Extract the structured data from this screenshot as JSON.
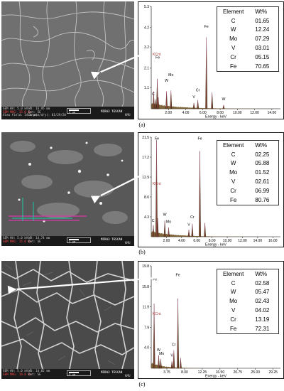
{
  "panels": [
    {
      "caption": "(a)",
      "sem": {
        "col1": [
          "SEM HV: 5.0 kV",
          "SEM MAG: 15.0 kx",
          "View field: 14.4 µm"
        ],
        "col2": [
          "WD: 16.95 mm",
          "Det: SE",
          "Date(m/d/y): 01/29/20"
        ],
        "scale": "2 µm",
        "brand": "MIRA3 TESCAN",
        "badge": "KMU"
      },
      "table": {
        "headers": [
          "Element",
          "Wt%"
        ],
        "rows": [
          [
            "C",
            "01.65"
          ],
          [
            "W",
            "12.24"
          ],
          [
            "Mo",
            "07.29"
          ],
          [
            "V",
            "03.01"
          ],
          [
            "Cr",
            "05.15"
          ],
          [
            "Fe",
            "70.65"
          ]
        ]
      },
      "chart_data": {
        "type": "bar",
        "xlabel": "Energy - keV",
        "xticks": [
          "2.00",
          "4.00",
          "6.00",
          "8.00",
          "10.00",
          "12.00",
          "14.00"
        ],
        "xlim": [
          0,
          15
        ],
        "yticks": [
          "1.1",
          "2.1",
          "3.2",
          "4.2",
          "5.3"
        ],
        "ylim": [
          0,
          5.3
        ],
        "kcnt_label": "KCnt",
        "peaks": [
          {
            "x": 0.28,
            "y": 0.9
          },
          {
            "x": 0.52,
            "y": 0.5
          },
          {
            "x": 0.7,
            "y": 1.55
          },
          {
            "x": 0.82,
            "y": 0.6
          },
          {
            "x": 1.78,
            "y": 0.9
          },
          {
            "x": 2.29,
            "y": 0.95
          },
          {
            "x": 4.95,
            "y": 0.3
          },
          {
            "x": 5.41,
            "y": 0.45
          },
          {
            "x": 6.4,
            "y": 3.7
          },
          {
            "x": 7.06,
            "y": 0.85
          },
          {
            "x": 8.4,
            "y": 0.2
          }
        ],
        "labels": [
          {
            "text": "C",
            "x": 0.25,
            "y": 0.7
          },
          {
            "text": "Fe",
            "x": 0.75,
            "y": 2.6
          },
          {
            "text": "W",
            "x": 1.78,
            "y": 1.4
          },
          {
            "text": "Mo",
            "x": 2.29,
            "y": 1.7
          },
          {
            "text": "V",
            "x": 4.95,
            "y": 0.55
          },
          {
            "text": "Cr",
            "x": 5.41,
            "y": 0.9
          },
          {
            "text": "Fe",
            "x": 6.4,
            "y": 4.2
          },
          {
            "text": "W",
            "x": 8.4,
            "y": 0.45
          }
        ]
      }
    },
    {
      "caption": "(b)",
      "sem": {
        "col1": [
          "SEM HV: 5.0 kV",
          "SEM MAG: 15.0 kx"
        ],
        "col2": [
          "WD: 14.74 mm",
          "Det: SE"
        ],
        "scale": "5 µm",
        "brand": "MIRA3 TESCAN",
        "badge": "KMU"
      },
      "table": {
        "headers": [
          "Element",
          "Wt%"
        ],
        "rows": [
          [
            "C",
            "02.25"
          ],
          [
            "W",
            "05.88"
          ],
          [
            "Mo",
            "01.52"
          ],
          [
            "V",
            "02.61"
          ],
          [
            "Cr",
            "06.99"
          ],
          [
            "Fe",
            "80.76"
          ]
        ]
      },
      "chart_data": {
        "type": "bar",
        "xlabel": "Energy - keV",
        "xticks": [
          "2.00",
          "4.00",
          "6.00",
          "8.00",
          "10.00",
          "12.00",
          "14.00",
          "16.00"
        ],
        "xlim": [
          0,
          17
        ],
        "yticks": [
          "4.3",
          "8.6",
          "12.9",
          "17.2",
          "21.5"
        ],
        "ylim": [
          0,
          21.5
        ],
        "kcnt_label": "KCnt",
        "peaks": [
          {
            "x": 0.28,
            "y": 2.5
          },
          {
            "x": 0.7,
            "y": 21.0
          },
          {
            "x": 0.85,
            "y": 4.0
          },
          {
            "x": 1.78,
            "y": 3.5
          },
          {
            "x": 2.29,
            "y": 2.0
          },
          {
            "x": 4.95,
            "y": 1.5
          },
          {
            "x": 5.41,
            "y": 2.8
          },
          {
            "x": 6.4,
            "y": 18.5
          },
          {
            "x": 7.06,
            "y": 3.0
          }
        ],
        "labels": [
          {
            "text": "Fe",
            "x": 0.75,
            "y": 21.0
          },
          {
            "text": "C",
            "x": 0.25,
            "y": 3.2
          },
          {
            "text": "W",
            "x": 1.78,
            "y": 4.5
          },
          {
            "text": "Mo",
            "x": 2.29,
            "y": 3.0
          },
          {
            "text": "V",
            "x": 4.95,
            "y": 2.4
          },
          {
            "text": "Cr",
            "x": 5.41,
            "y": 4.0
          },
          {
            "text": "Fe",
            "x": 6.4,
            "y": 21.0
          }
        ]
      }
    },
    {
      "caption": "(c)",
      "sem": {
        "col1": [
          "SEM HV: 5.0 kV",
          "SEM MAG: 10.0 kx"
        ],
        "col2": [
          "WD: 14.82 mm",
          "Det: SE"
        ],
        "scale": "5 µm",
        "brand": "MIRA3 TESCAN",
        "badge": "KMU"
      },
      "table": {
        "headers": [
          "Element",
          "Wt%"
        ],
        "rows": [
          [
            "C",
            "02.58"
          ],
          [
            "W",
            "05.47"
          ],
          [
            "Mo",
            "02.43"
          ],
          [
            "V",
            "04.02"
          ],
          [
            "Cr",
            "13.19"
          ],
          [
            "Fe",
            "72.31"
          ]
        ]
      },
      "chart_data": {
        "type": "bar",
        "xlabel": "Energy - keV",
        "xticks": [
          "3.75",
          "8.00",
          "12.25",
          "16.50",
          "20.75",
          "25.00",
          "29.25"
        ],
        "xtick_values": [
          3.75,
          8.0,
          12.25,
          16.5,
          20.75,
          25.0,
          29.25
        ],
        "xlim": [
          0,
          31
        ],
        "yticks": [
          "4.0",
          "7.9",
          "11.9",
          "15.8",
          "19.8"
        ],
        "ylim": [
          0,
          19.8
        ],
        "kcnt_label": "KCnt",
        "peaks": [
          {
            "x": 0.7,
            "y": 12.5
          },
          {
            "x": 1.78,
            "y": 2.5
          },
          {
            "x": 2.29,
            "y": 1.8
          },
          {
            "x": 4.95,
            "y": 1.3
          },
          {
            "x": 5.41,
            "y": 3.5
          },
          {
            "x": 6.4,
            "y": 13.5
          },
          {
            "x": 7.06,
            "y": 2.0
          }
        ],
        "labels": [
          {
            "text": "Fe",
            "x": 0.9,
            "y": 17.0
          },
          {
            "text": "Fe",
            "x": 6.4,
            "y": 17.8
          },
          {
            "text": "W",
            "x": 1.78,
            "y": 3.3
          },
          {
            "text": "Mo",
            "x": 2.5,
            "y": 2.6
          },
          {
            "text": "V",
            "x": 4.95,
            "y": 2.3
          },
          {
            "text": "Cr",
            "x": 5.41,
            "y": 4.3
          }
        ]
      }
    }
  ]
}
